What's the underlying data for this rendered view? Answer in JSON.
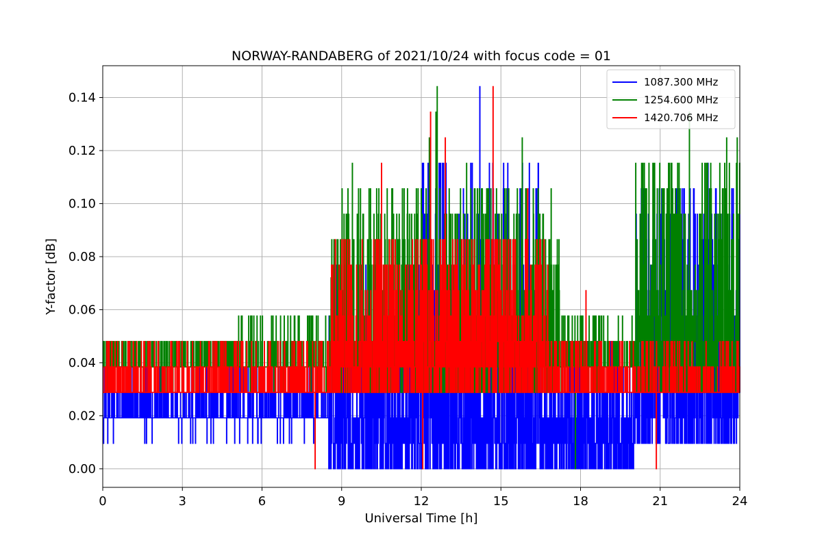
{
  "chart_data": {
    "type": "line",
    "title": "NORWAY-RANDABERG of 2021/10/24 with focus code = 01",
    "xlabel": "Universal Time [h]",
    "ylabel": "Y-factor [dB]",
    "xlim": [
      0,
      24
    ],
    "ylim": [
      -0.007,
      0.152
    ],
    "x_ticks": [
      0,
      3,
      6,
      9,
      12,
      15,
      18,
      21,
      24
    ],
    "y_ticks": [
      0.0,
      0.02,
      0.04,
      0.06,
      0.08,
      0.1,
      0.12,
      0.14
    ],
    "y_tick_labels": [
      "0.00",
      "0.02",
      "0.04",
      "0.06",
      "0.08",
      "0.10",
      "0.12",
      "0.14"
    ],
    "grid": true,
    "legend_position": "top-right",
    "quantization_step_db": 0.0096,
    "series": [
      {
        "name": "1087.300 MHz",
        "color": "#0000ff",
        "baseline": 0.0192,
        "segments": [
          {
            "x": [
              0.0,
              8.5
            ],
            "min": 0.0096,
            "max": 0.0384
          },
          {
            "x": [
              8.5,
              12.0
            ],
            "min": 0.0,
            "max": 0.0768
          },
          {
            "x": [
              12.0,
              16.5
            ],
            "min": 0.0,
            "max": 0.1152
          },
          {
            "x": [
              16.5,
              20.0
            ],
            "min": 0.0,
            "max": 0.048
          },
          {
            "x": [
              20.0,
              24.0
            ],
            "min": 0.0096,
            "max": 0.1056
          }
        ],
        "peaks": [
          {
            "x": 9.9,
            "y": 0.0
          },
          {
            "x": 12.0,
            "y": 0.0
          },
          {
            "x": 13.9,
            "y": 0.0864
          },
          {
            "x": 14.2,
            "y": 0.1441
          },
          {
            "x": 15.1,
            "y": 0.1152
          },
          {
            "x": 15.65,
            "y": 0.0
          },
          {
            "x": 17.8,
            "y": 0.0
          },
          {
            "x": 22.8,
            "y": 0.1152
          },
          {
            "x": 23.1,
            "y": 0.1056
          }
        ]
      },
      {
        "name": "1254.600 MHz",
        "color": "#008000",
        "baseline": 0.0384,
        "segments": [
          {
            "x": [
              0.0,
              5.0
            ],
            "min": 0.0288,
            "max": 0.048
          },
          {
            "x": [
              5.0,
              8.6
            ],
            "min": 0.0288,
            "max": 0.0576
          },
          {
            "x": [
              8.6,
              17.2
            ],
            "min": 0.0288,
            "max": 0.1056
          },
          {
            "x": [
              17.2,
              20.0
            ],
            "min": 0.0288,
            "max": 0.0576
          },
          {
            "x": [
              20.0,
              24.0
            ],
            "min": 0.0288,
            "max": 0.1152
          }
        ],
        "peaks": [
          {
            "x": 7.4,
            "y": 0.0576
          },
          {
            "x": 8.6,
            "y": 0.072
          },
          {
            "x": 9.4,
            "y": 0.1152
          },
          {
            "x": 10.5,
            "y": 0.1056
          },
          {
            "x": 12.3,
            "y": 0.1248
          },
          {
            "x": 12.55,
            "y": 0.1345
          },
          {
            "x": 12.6,
            "y": 0.1441
          },
          {
            "x": 13.7,
            "y": 0.1152
          },
          {
            "x": 15.8,
            "y": 0.1248
          },
          {
            "x": 17.8,
            "y": 0.0
          },
          {
            "x": 22.1,
            "y": 0.1345
          },
          {
            "x": 23.5,
            "y": 0.1248
          },
          {
            "x": 23.9,
            "y": 0.1248
          }
        ]
      },
      {
        "name": "1420.706 MHz",
        "color": "#ff0000",
        "baseline": 0.0288,
        "segments": [
          {
            "x": [
              0.0,
              8.6
            ],
            "min": 0.0288,
            "max": 0.048
          },
          {
            "x": [
              8.6,
              16.8
            ],
            "min": 0.0288,
            "max": 0.0864
          },
          {
            "x": [
              16.8,
              24.0
            ],
            "min": 0.0288,
            "max": 0.048
          }
        ],
        "peaks": [
          {
            "x": 8.0,
            "y": 0.0
          },
          {
            "x": 9.3,
            "y": 0.0864
          },
          {
            "x": 10.5,
            "y": 0.1152
          },
          {
            "x": 12.05,
            "y": 0.0
          },
          {
            "x": 12.35,
            "y": 0.1345
          },
          {
            "x": 12.9,
            "y": 0.1248
          },
          {
            "x": 14.7,
            "y": 0.1441
          },
          {
            "x": 16.0,
            "y": 0.1056
          },
          {
            "x": 18.2,
            "y": 0.0672
          },
          {
            "x": 20.85,
            "y": 0.0
          }
        ]
      }
    ]
  }
}
